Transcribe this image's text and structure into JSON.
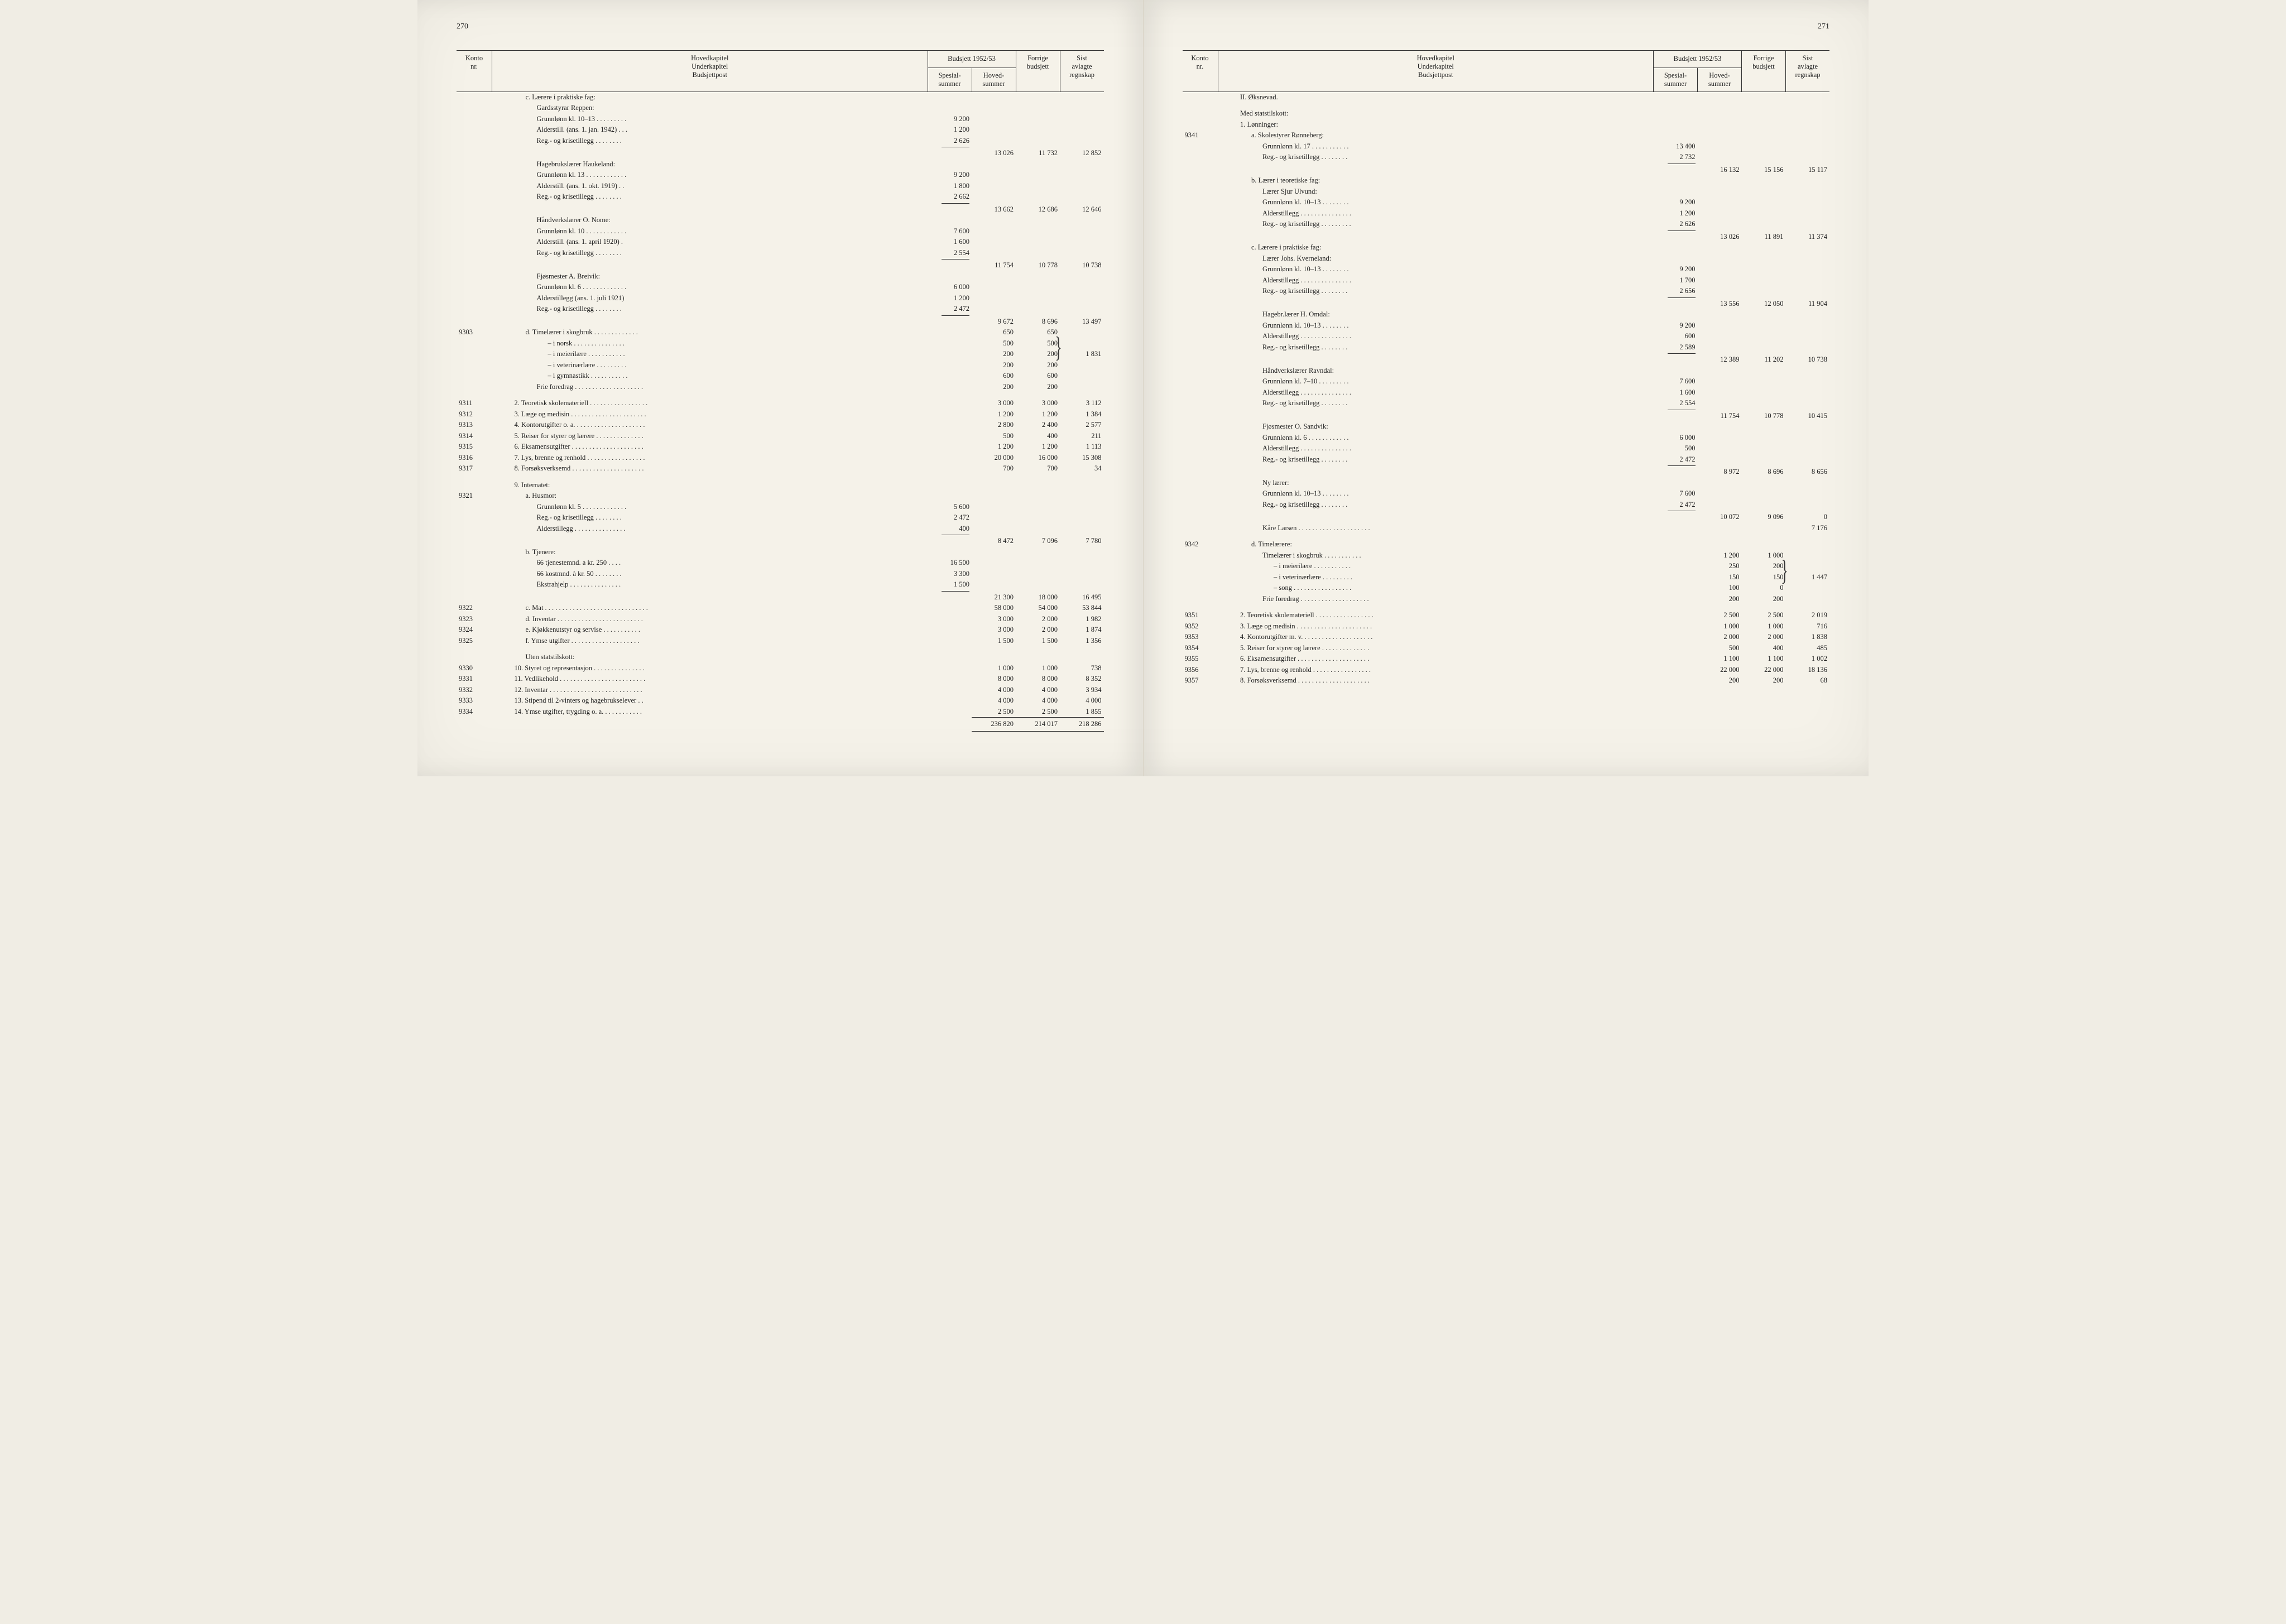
{
  "pages": {
    "left_num": "270",
    "right_num": "271"
  },
  "headers": {
    "konto": "Konto\nnr.",
    "hoved": "Hovedkapitel\nUnderkapitel\nBudsjettpost",
    "budsjett": "Budsjett 1952/53",
    "spesial": "Spesial-\nsummer",
    "hovedsum": "Hoved-\nsummer",
    "forrige": "Forrige\nbudsjett",
    "sist": "Sist\navlagte\nregnskap"
  },
  "left": {
    "blocks": [
      {
        "type": "head",
        "cls": "lvl-b",
        "text": "c.  Lærere i praktiske fag:"
      },
      {
        "type": "head",
        "cls": "lvl-c",
        "text": "Gardsstyrar Reppen:"
      },
      {
        "type": "line",
        "cls": "lvl-c",
        "text": "Grunnlønn kl. 10–13 . . . . . . . . .",
        "sp": "9 200"
      },
      {
        "type": "line",
        "cls": "lvl-c",
        "text": "Alderstill. (ans. 1. jan. 1942) . . .",
        "sp": "1 200"
      },
      {
        "type": "line",
        "cls": "lvl-c",
        "text": "Reg.- og krisetillegg  . . . . . . . .",
        "sp": "2 626"
      },
      {
        "type": "rule-sp"
      },
      {
        "type": "sum",
        "hs": "13 026",
        "fb": "11 732",
        "sr": "12 852"
      },
      {
        "type": "head",
        "cls": "lvl-c",
        "text": "Hagebrukslærer Haukeland:"
      },
      {
        "type": "line",
        "cls": "lvl-c",
        "text": "Grunnlønn kl. 13 . . . . . . . . . . . .",
        "sp": "9 200"
      },
      {
        "type": "line",
        "cls": "lvl-c",
        "text": "Alderstill. (ans. 1. okt. 1919)  . .",
        "sp": "1 800"
      },
      {
        "type": "line",
        "cls": "lvl-c",
        "text": "Reg.- og krisetillegg  . . . . . . . .",
        "sp": "2 662"
      },
      {
        "type": "rule-sp"
      },
      {
        "type": "sum",
        "hs": "13 662",
        "fb": "12 686",
        "sr": "12 646"
      },
      {
        "type": "head",
        "cls": "lvl-c",
        "text": "Håndverkslærer O. Nome:"
      },
      {
        "type": "line",
        "cls": "lvl-c",
        "text": "Grunnlønn kl. 10 . . . . . . . . . . . .",
        "sp": "7 600"
      },
      {
        "type": "line",
        "cls": "lvl-c",
        "text": "Alderstill. (ans. 1. april 1920)  .",
        "sp": "1 600"
      },
      {
        "type": "line",
        "cls": "lvl-c",
        "text": "Reg.- og krisetillegg  . . . . . . . .",
        "sp": "2 554"
      },
      {
        "type": "rule-sp"
      },
      {
        "type": "sum",
        "hs": "11 754",
        "fb": "10 778",
        "sr": "10 738"
      },
      {
        "type": "head",
        "cls": "lvl-c",
        "text": "Fjøsmester A. Breivik:"
      },
      {
        "type": "line",
        "cls": "lvl-c",
        "text": "Grunnlønn kl. 6 . . . . . . . . . . . . .",
        "sp": "6 000"
      },
      {
        "type": "line",
        "cls": "lvl-c",
        "text": "Alderstillegg (ans. 1. juli 1921)",
        "sp": "1 200"
      },
      {
        "type": "line",
        "cls": "lvl-c",
        "text": "Reg.- og krisetillegg  . . . . . . . .",
        "sp": "2 472"
      },
      {
        "type": "rule-sp"
      },
      {
        "type": "sum",
        "hs": "9 672",
        "fb": "8 696",
        "sr": "13 497"
      },
      {
        "type": "row",
        "konto": "9303",
        "cls": "lvl-b",
        "text": "d.  Timelærer i skogbruk  . . . . . . . . . . . . .",
        "hs": "650",
        "fb": "650"
      },
      {
        "type": "line",
        "cls": "lvl-d",
        "text": "–        i norsk  . . . . . . . . . . . . . . .",
        "hs": "500",
        "fb": "500"
      },
      {
        "type": "line",
        "cls": "lvl-d",
        "text": "–        i meierilære  . . . . . . . . . . .",
        "hs": "200",
        "fb": "200",
        "sr": "1 831",
        "bracket": true
      },
      {
        "type": "line",
        "cls": "lvl-d",
        "text": "–        i veterinærlære  . . . . . . . . .",
        "hs": "200",
        "fb": "200"
      },
      {
        "type": "line",
        "cls": "lvl-d",
        "text": "–        i gymnastikk . . . . . . . . . . .",
        "hs": "600",
        "fb": "600"
      },
      {
        "type": "line",
        "cls": "lvl-c",
        "text": "Frie foredrag . . . . . . . . . . . . . . . . . . . .",
        "hs": "200",
        "fb": "200"
      },
      {
        "type": "blank"
      },
      {
        "type": "row",
        "konto": "9311",
        "cls": "lvl-n",
        "text": "2.  Teoretisk skolemateriell  . . . . . . . . . . . . . . . . .",
        "hs": "3 000",
        "fb": "3 000",
        "sr": "3 112"
      },
      {
        "type": "row",
        "konto": "9312",
        "cls": "lvl-n",
        "text": "3.  Læge og medisin  . . . . . . . . . . . . . . . . . . . . . .",
        "hs": "1 200",
        "fb": "1 200",
        "sr": "1 384"
      },
      {
        "type": "row",
        "konto": "9313",
        "cls": "lvl-n",
        "text": "4.  Kontorutgifter o. a.  . . . . . . . . . . . . . . . . . . . .",
        "hs": "2 800",
        "fb": "2 400",
        "sr": "2 577"
      },
      {
        "type": "row",
        "konto": "9314",
        "cls": "lvl-n",
        "text": "5.  Reiser for styrer og lærere  . . . . . . . . . . . . . .",
        "hs": "500",
        "fb": "400",
        "sr": "211"
      },
      {
        "type": "row",
        "konto": "9315",
        "cls": "lvl-n",
        "text": "6.  Eksamensutgifter  . . . . . . . . . . . . . . . . . . . . .",
        "hs": "1 200",
        "fb": "1 200",
        "sr": "1 113"
      },
      {
        "type": "row",
        "konto": "9316",
        "cls": "lvl-n",
        "text": "7.  Lys, brenne og renhold  . . . . . . . . . . . . . . . . .",
        "hs": "20 000",
        "fb": "16 000",
        "sr": "15 308"
      },
      {
        "type": "row",
        "konto": "9317",
        "cls": "lvl-n",
        "text": "8.  Forsøksverksemd  . . . . . . . . . . . . . . . . . . . . .",
        "hs": "700",
        "fb": "700",
        "sr": "34"
      },
      {
        "type": "blank"
      },
      {
        "type": "head",
        "cls": "lvl-n",
        "text": "9.  Internatet:"
      },
      {
        "type": "row",
        "konto": "9321",
        "cls": "lvl-b",
        "text": "a.  Husmor:"
      },
      {
        "type": "line",
        "cls": "lvl-c",
        "text": "Grunnlønn kl. 5 . . . . . . . . . . . . .",
        "sp": "5 600"
      },
      {
        "type": "line",
        "cls": "lvl-c",
        "text": "Reg.- og krisetillegg  . . . . . . . .",
        "sp": "2 472"
      },
      {
        "type": "line",
        "cls": "lvl-c",
        "text": "Alderstillegg . . . . . . . . . . . . . . .",
        "sp": "400"
      },
      {
        "type": "rule-sp"
      },
      {
        "type": "sum",
        "hs": "8 472",
        "fb": "7 096",
        "sr": "7 780"
      },
      {
        "type": "head",
        "cls": "lvl-b",
        "text": "b.  Tjenere:"
      },
      {
        "type": "line",
        "cls": "lvl-c",
        "text": "66 tjenestemnd. a kr. 250  . . . .",
        "sp": "16 500"
      },
      {
        "type": "line",
        "cls": "lvl-c",
        "text": "66 kostmnd. à kr. 50  . . . . . . . .",
        "sp": "3 300"
      },
      {
        "type": "line",
        "cls": "lvl-c",
        "text": "Ekstrahjelp  . . . . . . . . . . . . . . .",
        "sp": "1 500"
      },
      {
        "type": "rule-sp"
      },
      {
        "type": "sum",
        "hs": "21 300",
        "fb": "18 000",
        "sr": "16 495"
      },
      {
        "type": "row",
        "konto": "9322",
        "cls": "lvl-b",
        "text": "c.  Mat . . . . . . . . . . . . . . . . . . . . . . . . . . . . . .",
        "hs": "58 000",
        "fb": "54 000",
        "sr": "53 844"
      },
      {
        "type": "row",
        "konto": "9323",
        "cls": "lvl-b",
        "text": "d.  Inventar  . . . . . . . . . . . . . . . . . . . . . . . . .",
        "hs": "3 000",
        "fb": "2 000",
        "sr": "1 982"
      },
      {
        "type": "row",
        "konto": "9324",
        "cls": "lvl-b",
        "text": "e.  Kjøkkenutstyr og servise  . . . . . . . . . . .",
        "hs": "3 000",
        "fb": "2 000",
        "sr": "1 874"
      },
      {
        "type": "row",
        "konto": "9325",
        "cls": "lvl-b",
        "text": "f.  Ymse utgifter  . . . . . . . . . . . . . . . . . . . .",
        "hs": "1 500",
        "fb": "1 500",
        "sr": "1 356"
      },
      {
        "type": "blank"
      },
      {
        "type": "head",
        "cls": "lvl-b",
        "text": "Uten statstilskott:"
      },
      {
        "type": "row",
        "konto": "9330",
        "cls": "lvl-n",
        "text": "10.  Styret og representasjon  . . . . . . . . . . . . . . .",
        "hs": "1 000",
        "fb": "1 000",
        "sr": "738"
      },
      {
        "type": "row",
        "konto": "9331",
        "cls": "lvl-n",
        "text": "11.  Vedlikehold  . . . . . . . . . . . . . . . . . . . . . . . . .",
        "hs": "8 000",
        "fb": "8 000",
        "sr": "8 352"
      },
      {
        "type": "row",
        "konto": "9332",
        "cls": "lvl-n",
        "text": "12.  Inventar  . . . . . . . . . . . . . . . . . . . . . . . . . . .",
        "hs": "4 000",
        "fb": "4 000",
        "sr": "3 934"
      },
      {
        "type": "row",
        "konto": "9333",
        "cls": "lvl-n",
        "text": "13.  Stipend til 2-vinters og hagebrukselever . .",
        "hs": "4 000",
        "fb": "4 000",
        "sr": "4 000"
      },
      {
        "type": "row",
        "konto": "9334",
        "cls": "lvl-n",
        "text": "14.  Ymse utgifter, trygding o. a.  . . . . . . . . . . .",
        "hs": "2 500",
        "fb": "2 500",
        "sr": "1 855"
      },
      {
        "type": "total",
        "hs": "236 820",
        "fb": "214 017",
        "sr": "218 286"
      }
    ]
  },
  "right": {
    "blocks": [
      {
        "type": "head",
        "cls": "lvl-n",
        "text": "II. Øksnevad."
      },
      {
        "type": "blank"
      },
      {
        "type": "head",
        "cls": "lvl-n",
        "text": "Med statstilskott:"
      },
      {
        "type": "head",
        "cls": "lvl-n",
        "text": "1.  Lønninger:"
      },
      {
        "type": "row",
        "konto": "9341",
        "cls": "lvl-b",
        "text": "a.  Skolestyrer Rønneberg:"
      },
      {
        "type": "line",
        "cls": "lvl-c",
        "text": "Grunnlønn kl. 17  . . . . . . . . . . .",
        "sp": "13 400"
      },
      {
        "type": "line",
        "cls": "lvl-c",
        "text": "Reg.- og krisetillegg  . . . . . . . .",
        "sp": "2 732"
      },
      {
        "type": "rule-sp"
      },
      {
        "type": "sum",
        "hs": "16 132",
        "fb": "15 156",
        "sr": "15 117"
      },
      {
        "type": "head",
        "cls": "lvl-b",
        "text": "b.  Lærer i teoretiske fag:"
      },
      {
        "type": "head",
        "cls": "lvl-c",
        "text": "Lærer Sjur Ulvund:"
      },
      {
        "type": "line",
        "cls": "lvl-c",
        "text": "Grunnlønn kl. 10–13  . . . . . . . .",
        "sp": "9 200"
      },
      {
        "type": "line",
        "cls": "lvl-c",
        "text": "Alderstillegg . . . . . . . . . . . . . . .",
        "sp": "1 200"
      },
      {
        "type": "line",
        "cls": "lvl-c",
        "text": "Reg.- og krisetillegg . . . . . . . . .",
        "sp": "2 626"
      },
      {
        "type": "rule-sp"
      },
      {
        "type": "sum",
        "hs": "13 026",
        "fb": "11 891",
        "sr": "11 374"
      },
      {
        "type": "head",
        "cls": "lvl-b",
        "text": "c.  Lærere i praktiske fag:"
      },
      {
        "type": "head",
        "cls": "lvl-c",
        "text": "Lærer Johs. Kverneland:"
      },
      {
        "type": "line",
        "cls": "lvl-c",
        "text": "Grunnlønn kl. 10–13  . . . . . . . .",
        "sp": "9 200"
      },
      {
        "type": "line",
        "cls": "lvl-c",
        "text": "Alderstillegg . . . . . . . . . . . . . . .",
        "sp": "1 700"
      },
      {
        "type": "line",
        "cls": "lvl-c",
        "text": "Reg.- og krisetillegg  . . . . . . . .",
        "sp": "2 656"
      },
      {
        "type": "rule-sp"
      },
      {
        "type": "sum",
        "hs": "13 556",
        "fb": "12 050",
        "sr": "11 904"
      },
      {
        "type": "head",
        "cls": "lvl-c",
        "text": "Hagebr.lærer H. Omdal:"
      },
      {
        "type": "line",
        "cls": "lvl-c",
        "text": "Grunnlønn kl. 10–13  . . . . . . . .",
        "sp": "9 200"
      },
      {
        "type": "line",
        "cls": "lvl-c",
        "text": "Alderstillegg . . . . . . . . . . . . . . .",
        "sp": "600"
      },
      {
        "type": "line",
        "cls": "lvl-c",
        "text": "Reg.- og krisetillegg  . . . . . . . .",
        "sp": "2 589"
      },
      {
        "type": "rule-sp"
      },
      {
        "type": "sum",
        "hs": "12 389",
        "fb": "11 202",
        "sr": "10 738"
      },
      {
        "type": "head",
        "cls": "lvl-c",
        "text": "Håndverkslærer Ravndal:"
      },
      {
        "type": "line",
        "cls": "lvl-c",
        "text": "Grunnlønn kl. 7–10  . . . . . . . . .",
        "sp": "7 600"
      },
      {
        "type": "line",
        "cls": "lvl-c",
        "text": "Alderstillegg . . . . . . . . . . . . . . .",
        "sp": "1 600"
      },
      {
        "type": "line",
        "cls": "lvl-c",
        "text": "Reg.- og krisetillegg  . . . . . . . .",
        "sp": "2 554"
      },
      {
        "type": "rule-sp"
      },
      {
        "type": "sum",
        "hs": "11 754",
        "fb": "10 778",
        "sr": "10 415"
      },
      {
        "type": "head",
        "cls": "lvl-c",
        "text": "Fjøsmester O. Sandvik:"
      },
      {
        "type": "line",
        "cls": "lvl-c",
        "text": "Grunnlønn kl. 6  . . . . . . . . . . . .",
        "sp": "6 000"
      },
      {
        "type": "line",
        "cls": "lvl-c",
        "text": "Alderstillegg . . . . . . . . . . . . . . .",
        "sp": "500"
      },
      {
        "type": "line",
        "cls": "lvl-c",
        "text": "Reg.- og krisetillegg  . . . . . . . .",
        "sp": "2 472"
      },
      {
        "type": "rule-sp"
      },
      {
        "type": "sum",
        "hs": "8 972",
        "fb": "8 696",
        "sr": "8 656"
      },
      {
        "type": "head",
        "cls": "lvl-c",
        "text": "Ny lærer:"
      },
      {
        "type": "line",
        "cls": "lvl-c",
        "text": "Grunnlønn kl. 10–13  . . . . . . . .",
        "sp": "7 600"
      },
      {
        "type": "line",
        "cls": "lvl-c",
        "text": "Reg.- og krisetillegg  . . . . . . . .",
        "sp": "2 472"
      },
      {
        "type": "rule-sp"
      },
      {
        "type": "sum",
        "hs": "10 072",
        "fb": "9 096",
        "sr": "0"
      },
      {
        "type": "line",
        "cls": "lvl-c",
        "text": "Kåre Larsen . . . . . . . . . . . . . . . . . . . . .",
        "sr": "7 176"
      },
      {
        "type": "blank"
      },
      {
        "type": "row",
        "konto": "9342",
        "cls": "lvl-b",
        "text": "d.  Timelærere:"
      },
      {
        "type": "line",
        "cls": "lvl-c",
        "text": "Timelærer  i skogbruk  . . . . . . . . . . .",
        "hs": "1 200",
        "fb": "1 000"
      },
      {
        "type": "line",
        "cls": "lvl-d",
        "text": "–         i meierilære  . . . . . . . . . . .",
        "hs": "250",
        "fb": "200"
      },
      {
        "type": "line",
        "cls": "lvl-d",
        "text": "–         i veterinærlære  . . . . . . . . .",
        "hs": "150",
        "fb": "150",
        "sr": "1 447",
        "bracket": true
      },
      {
        "type": "line",
        "cls": "lvl-d",
        "text": "–         song  . . . . . . . . . . . . . . . . .",
        "hs": "100",
        "fb": "0"
      },
      {
        "type": "line",
        "cls": "lvl-c",
        "text": "Frie foredrag . . . . . . . . . . . . . . . . . . . .",
        "hs": "200",
        "fb": "200"
      },
      {
        "type": "blank"
      },
      {
        "type": "row",
        "konto": "9351",
        "cls": "lvl-n",
        "text": "2.  Teoretisk skolemateriell . . . . . . . . . . . . . . . . .",
        "hs": "2 500",
        "fb": "2 500",
        "sr": "2 019"
      },
      {
        "type": "row",
        "konto": "9352",
        "cls": "lvl-n",
        "text": "3.  Læge og medisin  . . . . . . . . . . . . . . . . . . . . . .",
        "hs": "1 000",
        "fb": "1 000",
        "sr": "716"
      },
      {
        "type": "row",
        "konto": "9353",
        "cls": "lvl-n",
        "text": "4.  Kontorutgifter m. v.  . . . . . . . . . . . . . . . . . . . .",
        "hs": "2 000",
        "fb": "2 000",
        "sr": "1 838"
      },
      {
        "type": "row",
        "konto": "9354",
        "cls": "lvl-n",
        "text": "5.  Reiser for styrer og lærere  . . . . . . . . . . . . . .",
        "hs": "500",
        "fb": "400",
        "sr": "485"
      },
      {
        "type": "row",
        "konto": "9355",
        "cls": "lvl-n",
        "text": "6.  Eksamensutgifter  . . . . . . . . . . . . . . . . . . . . .",
        "hs": "1 100",
        "fb": "1 100",
        "sr": "1 002"
      },
      {
        "type": "row",
        "konto": "9356",
        "cls": "lvl-n",
        "text": "7.  Lys, brenne og renhold  . . . . . . . . . . . . . . . . .",
        "hs": "22 000",
        "fb": "22 000",
        "sr": "18 136"
      },
      {
        "type": "row",
        "konto": "9357",
        "cls": "lvl-n",
        "text": "8.  Forsøksverksemd  . . . . . . . . . . . . . . . . . . . . .",
        "hs": "200",
        "fb": "200",
        "sr": "68"
      }
    ]
  }
}
